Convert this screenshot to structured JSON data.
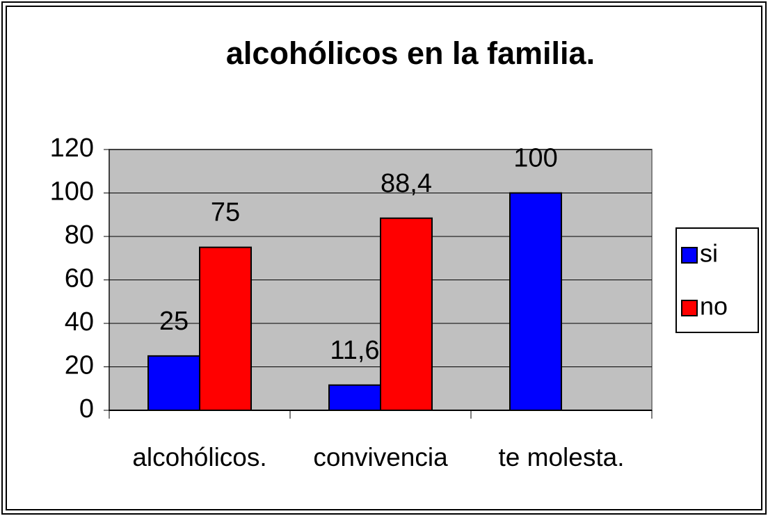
{
  "chart_data": {
    "type": "bar",
    "title": "alcohólicos en la familia.",
    "categories": [
      "alcohólicos.",
      "convivencia",
      "te molesta."
    ],
    "series": [
      {
        "name": "si",
        "color": "#0000ff",
        "values": [
          25,
          11.6,
          100
        ],
        "value_labels": [
          "25",
          "11,6",
          "100"
        ]
      },
      {
        "name": "no",
        "color": "#ff0000",
        "values": [
          75,
          88.4,
          null
        ],
        "value_labels": [
          "75",
          "88,4",
          null
        ]
      }
    ],
    "ylim": [
      0,
      120
    ],
    "yticks": [
      0,
      20,
      40,
      60,
      80,
      100,
      120
    ],
    "grid": true,
    "legend": "right"
  }
}
